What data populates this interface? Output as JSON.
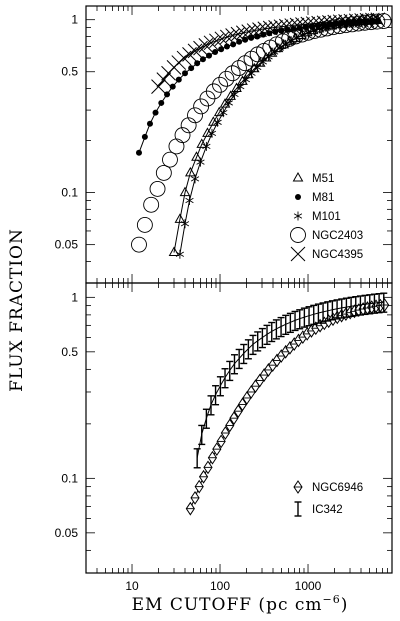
{
  "chart_data": [
    {
      "type": "scatter",
      "panel": "top",
      "xscale": "log",
      "yscale": "log",
      "xlim": [
        3,
        9000
      ],
      "ylim": [
        0.03,
        1.2
      ],
      "ytick_labels": [
        "0.05",
        "0.1",
        "0.5",
        "1"
      ],
      "ytick_values": [
        0.05,
        0.1,
        0.5,
        1
      ],
      "legend_placement": "lower-right",
      "series": [
        {
          "name": "M51",
          "marker": "triangle",
          "line": true,
          "x": [
            30,
            35,
            40,
            46,
            54,
            62,
            72,
            84,
            98,
            114,
            132,
            154,
            180,
            210,
            245,
            286,
            334,
            390,
            455,
            530,
            620,
            720,
            840,
            980,
            1140,
            1330,
            1550,
            1810,
            2110,
            2460,
            2870,
            3350,
            3900,
            4550,
            5300,
            6200
          ],
          "y": [
            0.045,
            0.07,
            0.1,
            0.13,
            0.16,
            0.19,
            0.22,
            0.255,
            0.29,
            0.325,
            0.36,
            0.4,
            0.44,
            0.48,
            0.52,
            0.56,
            0.6,
            0.64,
            0.68,
            0.715,
            0.75,
            0.78,
            0.81,
            0.84,
            0.865,
            0.885,
            0.905,
            0.92,
            0.935,
            0.945,
            0.955,
            0.965,
            0.972,
            0.978,
            0.985,
            0.99
          ]
        },
        {
          "name": "M81",
          "marker": "filled-circle",
          "line": true,
          "x": [
            12,
            14,
            16,
            18.5,
            21.5,
            25,
            29,
            34,
            40,
            47,
            55,
            64,
            75,
            88,
            103,
            120,
            141,
            165,
            193,
            226,
            265,
            310,
            363,
            425,
            498,
            583,
            683,
            800,
            937,
            1100,
            1290,
            1510,
            1770,
            2070,
            2420,
            2840,
            3320,
            3890,
            4550,
            5330,
            6240
          ],
          "y": [
            0.17,
            0.21,
            0.25,
            0.29,
            0.33,
            0.37,
            0.41,
            0.45,
            0.49,
            0.525,
            0.56,
            0.59,
            0.62,
            0.65,
            0.675,
            0.7,
            0.72,
            0.745,
            0.765,
            0.785,
            0.8,
            0.82,
            0.835,
            0.85,
            0.862,
            0.875,
            0.885,
            0.895,
            0.905,
            0.915,
            0.925,
            0.933,
            0.94,
            0.948,
            0.955,
            0.962,
            0.968,
            0.974,
            0.98,
            0.985,
            0.99
          ]
        },
        {
          "name": "M101",
          "marker": "asterisk",
          "line": true,
          "x": [
            35,
            40,
            45,
            52,
            60,
            70,
            81,
            94,
            109,
            126,
            146,
            170,
            197,
            228,
            265,
            307,
            356,
            413,
            479,
            556,
            645,
            748,
            867,
            1006,
            1167,
            1353,
            1570,
            1821,
            2112,
            2450,
            2842,
            3297,
            3824,
            4436,
            5146,
            5970
          ],
          "y": [
            0.044,
            0.066,
            0.09,
            0.12,
            0.15,
            0.185,
            0.22,
            0.255,
            0.29,
            0.33,
            0.37,
            0.41,
            0.45,
            0.49,
            0.53,
            0.57,
            0.61,
            0.65,
            0.685,
            0.72,
            0.755,
            0.785,
            0.815,
            0.84,
            0.865,
            0.885,
            0.905,
            0.92,
            0.935,
            0.948,
            0.958,
            0.967,
            0.975,
            0.982,
            0.988,
            0.993
          ]
        },
        {
          "name": "NGC2403",
          "marker": "open-circle",
          "line": false,
          "x": [
            12,
            14,
            16.5,
            19.5,
            23,
            27,
            32,
            37.5,
            44,
            52,
            61,
            72,
            85,
            100,
            118,
            139,
            164,
            193,
            228,
            268,
            316,
            373,
            439,
            518,
            611,
            720,
            849,
            1000,
            1180,
            1390,
            1640,
            1930,
            2280,
            2690,
            3170,
            3740,
            4410,
            5200,
            6130,
            7230
          ],
          "y": [
            0.05,
            0.065,
            0.085,
            0.105,
            0.13,
            0.155,
            0.185,
            0.215,
            0.245,
            0.28,
            0.315,
            0.35,
            0.385,
            0.42,
            0.455,
            0.49,
            0.525,
            0.56,
            0.595,
            0.63,
            0.66,
            0.69,
            0.72,
            0.75,
            0.775,
            0.8,
            0.82,
            0.84,
            0.86,
            0.875,
            0.89,
            0.905,
            0.918,
            0.93,
            0.94,
            0.95,
            0.96,
            0.968,
            0.975,
            0.982
          ]
        },
        {
          "name": "NGC4395",
          "marker": "cross",
          "line": true,
          "x": [
            20,
            23,
            26,
            30,
            34,
            39,
            45,
            52,
            60,
            69,
            79,
            91,
            105,
            121,
            139,
            160,
            184,
            212,
            244,
            281,
            323,
            372,
            428,
            493,
            567,
            653,
            751,
            865,
            995,
            1145,
            1320,
            1520,
            1750,
            2010,
            2320,
            2670,
            3070,
            3530,
            4070,
            4680,
            5390,
            6200
          ],
          "y": [
            0.41,
            0.45,
            0.49,
            0.53,
            0.565,
            0.6,
            0.63,
            0.66,
            0.685,
            0.71,
            0.735,
            0.755,
            0.775,
            0.795,
            0.81,
            0.825,
            0.84,
            0.853,
            0.865,
            0.876,
            0.886,
            0.895,
            0.903,
            0.911,
            0.918,
            0.925,
            0.932,
            0.938,
            0.944,
            0.95,
            0.955,
            0.96,
            0.965,
            0.97,
            0.974,
            0.978,
            0.982,
            0.986,
            0.99,
            0.993,
            0.996,
            0.999
          ]
        }
      ]
    },
    {
      "type": "scatter",
      "panel": "bottom",
      "xscale": "log",
      "yscale": "log",
      "xlim": [
        3,
        9000
      ],
      "ylim": [
        0.03,
        1.2
      ],
      "xtick_labels": [
        "10",
        "100",
        "1000"
      ],
      "xtick_values": [
        10,
        100,
        1000
      ],
      "ytick_labels": [
        "0.05",
        "0.1",
        "0.5",
        "1"
      ],
      "ytick_values": [
        0.05,
        0.1,
        0.5,
        1
      ],
      "xlabel": "EM CUTOFF (pc cm",
      "xlabel_sup": "−6",
      "xlabel_end": ")",
      "ylabel": "FLUX FRACTION",
      "legend_placement": "lower-right",
      "series": [
        {
          "name": "NGC6946",
          "marker": "diamond",
          "line": true,
          "x": [
            46,
            52,
            58,
            65,
            73,
            82,
            92,
            103,
            115,
            129,
            144,
            161,
            180,
            202,
            226,
            253,
            283,
            317,
            355,
            397,
            444,
            497,
            557,
            623,
            697,
            780,
            873,
            978,
            1094,
            1225,
            1371,
            1534,
            1717,
            1922,
            2151,
            2407,
            2694,
            3015,
            3375,
            3777,
            4227,
            4731,
            5295,
            5926,
            6632,
            7423
          ],
          "y": [
            0.068,
            0.078,
            0.09,
            0.102,
            0.115,
            0.13,
            0.145,
            0.16,
            0.178,
            0.196,
            0.215,
            0.235,
            0.256,
            0.278,
            0.3,
            0.323,
            0.347,
            0.372,
            0.397,
            0.422,
            0.448,
            0.474,
            0.5,
            0.526,
            0.552,
            0.578,
            0.603,
            0.628,
            0.652,
            0.675,
            0.697,
            0.718,
            0.738,
            0.757,
            0.775,
            0.792,
            0.808,
            0.823,
            0.837,
            0.85,
            0.862,
            0.873,
            0.883,
            0.892,
            0.9,
            0.907
          ]
        },
        {
          "name": "IC342",
          "marker": "errorbar",
          "line": true,
          "x": [
            55,
            62,
            70,
            79,
            89,
            101,
            114,
            129,
            146,
            165,
            186,
            210,
            237,
            268,
            303,
            342,
            387,
            437,
            494,
            558,
            630,
            712,
            805,
            909,
            1027,
            1161,
            1312,
            1482,
            1675,
            1892,
            2138,
            2416,
            2730,
            3085,
            3486,
            3939,
            4451,
            5029,
            5683,
            6421,
            7256
          ],
          "y": [
            0.13,
            0.175,
            0.215,
            0.255,
            0.29,
            0.325,
            0.36,
            0.395,
            0.43,
            0.46,
            0.49,
            0.52,
            0.55,
            0.575,
            0.6,
            0.625,
            0.648,
            0.67,
            0.69,
            0.71,
            0.728,
            0.746,
            0.762,
            0.778,
            0.792,
            0.806,
            0.819,
            0.831,
            0.843,
            0.854,
            0.864,
            0.874,
            0.883,
            0.892,
            0.9,
            0.908,
            0.915,
            0.922,
            0.929,
            0.935,
            0.941
          ],
          "err_frac": 0.12
        }
      ]
    }
  ]
}
